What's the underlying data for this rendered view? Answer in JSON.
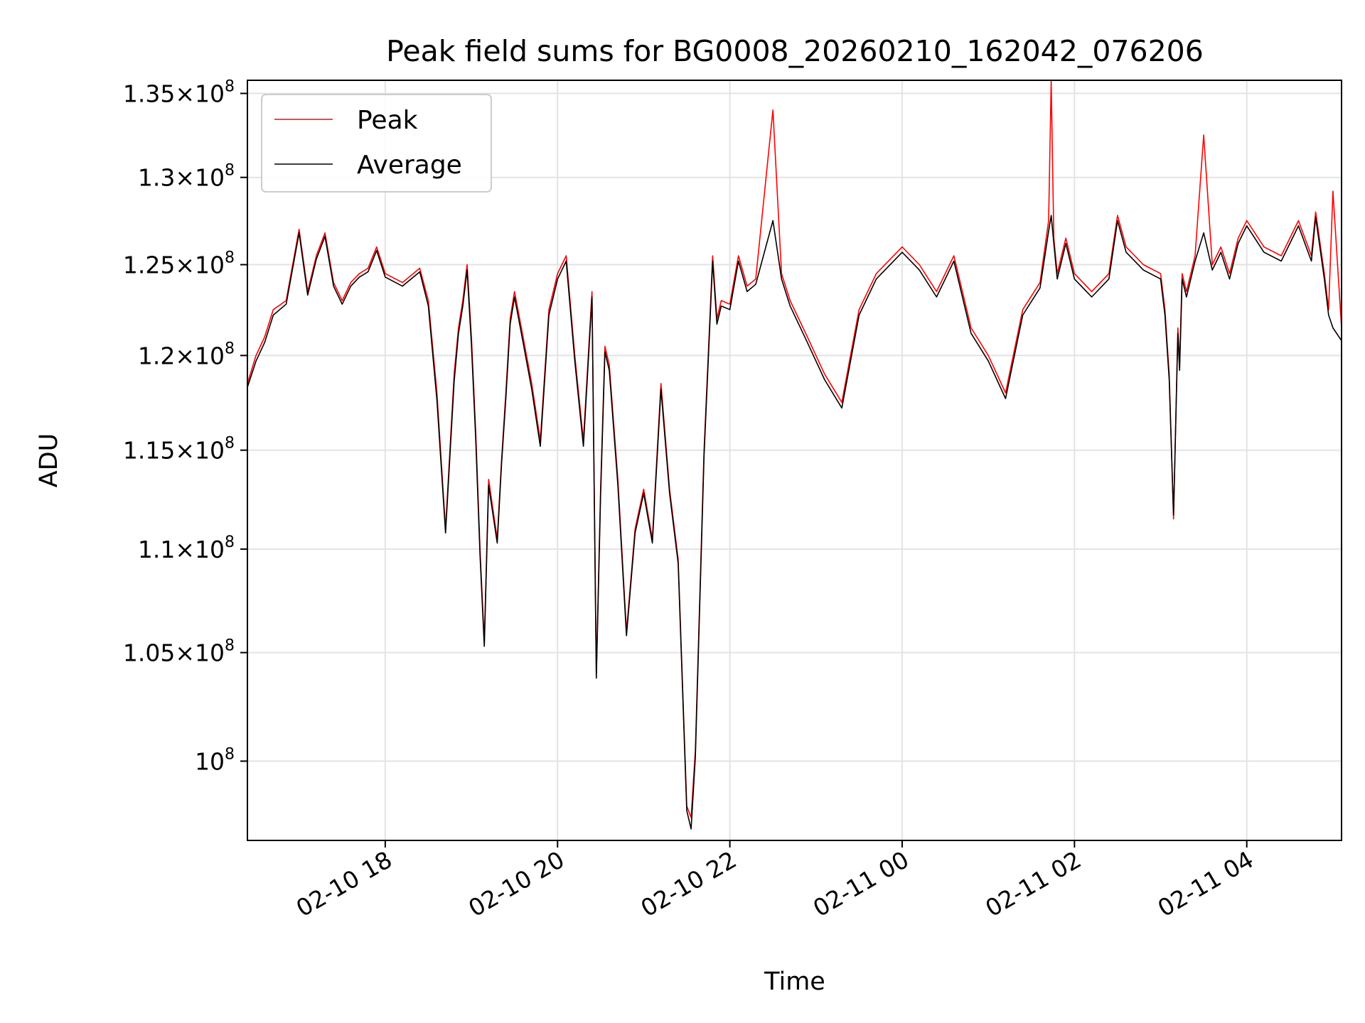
{
  "chart_data": {
    "type": "line",
    "title": "Peak field sums for BG0008_20260210_162042_076206",
    "xlabel": "Time",
    "ylabel": "ADU",
    "y_scale": "log",
    "xlim_hours": [
      16.4,
      29.1
    ],
    "ylim": [
      96500000,
      135800000
    ],
    "x_ticks": [
      {
        "hour": 18,
        "label": "02-10 18"
      },
      {
        "hour": 20,
        "label": "02-10 20"
      },
      {
        "hour": 22,
        "label": "02-10 22"
      },
      {
        "hour": 24,
        "label": "02-11 00"
      },
      {
        "hour": 26,
        "label": "02-11 02"
      },
      {
        "hour": 28,
        "label": "02-11 04"
      }
    ],
    "y_ticks": [
      {
        "value": 100000000,
        "mantissa": "",
        "exponent": "8"
      },
      {
        "value": 105000000,
        "mantissa": "1.05",
        "exponent": "8"
      },
      {
        "value": 110000000,
        "mantissa": "1.1",
        "exponent": "8"
      },
      {
        "value": 115000000,
        "mantissa": "1.15",
        "exponent": "8"
      },
      {
        "value": 120000000,
        "mantissa": "1.2",
        "exponent": "8"
      },
      {
        "value": 125000000,
        "mantissa": "1.25",
        "exponent": "8"
      },
      {
        "value": 130000000,
        "mantissa": "1.3",
        "exponent": "8"
      },
      {
        "value": 135000000,
        "mantissa": "1.35",
        "exponent": "8"
      }
    ],
    "legend_position": "top-left",
    "series": [
      {
        "name": "Peak",
        "color": "#ff0000",
        "x": [
          16.4,
          16.5,
          16.6,
          16.7,
          16.85,
          17.0,
          17.1,
          17.2,
          17.3,
          17.4,
          17.5,
          17.6,
          17.7,
          17.8,
          17.9,
          18.0,
          18.2,
          18.4,
          18.5,
          18.6,
          18.7,
          18.8,
          18.85,
          18.9,
          18.95,
          19.0,
          19.05,
          19.1,
          19.15,
          19.2,
          19.3,
          19.35,
          19.4,
          19.45,
          19.5,
          19.6,
          19.7,
          19.8,
          19.9,
          20.0,
          20.1,
          20.2,
          20.3,
          20.4,
          20.45,
          20.5,
          20.55,
          20.6,
          20.7,
          20.8,
          20.9,
          21.0,
          21.1,
          21.2,
          21.3,
          21.4,
          21.5,
          21.55,
          21.6,
          21.7,
          21.8,
          21.85,
          21.9,
          22.0,
          22.1,
          22.2,
          22.3,
          22.5,
          22.6,
          22.7,
          22.9,
          23.1,
          23.3,
          23.5,
          23.7,
          24.0,
          24.2,
          24.4,
          24.6,
          24.8,
          25.0,
          25.2,
          25.4,
          25.6,
          25.7,
          25.73,
          25.76,
          25.8,
          25.9,
          26.0,
          26.2,
          26.4,
          26.5,
          26.6,
          26.8,
          27.0,
          27.05,
          27.1,
          27.15,
          27.2,
          27.22,
          27.25,
          27.3,
          27.4,
          27.5,
          27.6,
          27.7,
          27.8,
          27.9,
          28.0,
          28.2,
          28.4,
          28.6,
          28.75,
          28.8,
          28.9,
          28.95,
          29.0,
          29.1
        ],
        "y": [
          118500000,
          120000000,
          121000000,
          122500000,
          123000000,
          127000000,
          123500000,
          125500000,
          126800000,
          124000000,
          123000000,
          124000000,
          124500000,
          124800000,
          126000000,
          124500000,
          124000000,
          124800000,
          123000000,
          118000000,
          111000000,
          119000000,
          121500000,
          123000000,
          125000000,
          121000000,
          116000000,
          110000000,
          105500000,
          113500000,
          110500000,
          114500000,
          118000000,
          122000000,
          123500000,
          121000000,
          118500000,
          115500000,
          122500000,
          124500000,
          125500000,
          120000000,
          115500000,
          123500000,
          104000000,
          113000000,
          120500000,
          119500000,
          113500000,
          106000000,
          111000000,
          113000000,
          110500000,
          118500000,
          113000000,
          109500000,
          98000000,
          97500000,
          100500000,
          115000000,
          125500000,
          122000000,
          123000000,
          122800000,
          125500000,
          123800000,
          124200000,
          134000000,
          124500000,
          123000000,
          121000000,
          119000000,
          117500000,
          122500000,
          124500000,
          126000000,
          125000000,
          123500000,
          125500000,
          121500000,
          120000000,
          118000000,
          122500000,
          124000000,
          127500000,
          135800000,
          126500000,
          124500000,
          126500000,
          124500000,
          123500000,
          124500000,
          127800000,
          126000000,
          125000000,
          124500000,
          122500000,
          119000000,
          111500000,
          121500000,
          119500000,
          124500000,
          123500000,
          125500000,
          132500000,
          125000000,
          126000000,
          124500000,
          126500000,
          127500000,
          126000000,
          125500000,
          127500000,
          125500000,
          128000000,
          124500000,
          122500000,
          129200000,
          121500000
        ]
      },
      {
        "name": "Average",
        "color": "#000000",
        "x": [
          16.4,
          16.5,
          16.6,
          16.7,
          16.85,
          17.0,
          17.1,
          17.2,
          17.3,
          17.4,
          17.5,
          17.6,
          17.7,
          17.8,
          17.9,
          18.0,
          18.2,
          18.4,
          18.5,
          18.6,
          18.7,
          18.8,
          18.85,
          18.9,
          18.95,
          19.0,
          19.05,
          19.1,
          19.15,
          19.2,
          19.3,
          19.35,
          19.4,
          19.45,
          19.5,
          19.6,
          19.7,
          19.8,
          19.9,
          20.0,
          20.1,
          20.2,
          20.3,
          20.4,
          20.45,
          20.5,
          20.55,
          20.6,
          20.7,
          20.8,
          20.9,
          21.0,
          21.1,
          21.2,
          21.3,
          21.4,
          21.5,
          21.55,
          21.6,
          21.7,
          21.8,
          21.85,
          21.9,
          22.0,
          22.1,
          22.2,
          22.3,
          22.5,
          22.6,
          22.7,
          22.9,
          23.1,
          23.3,
          23.5,
          23.7,
          24.0,
          24.2,
          24.4,
          24.6,
          24.8,
          25.0,
          25.2,
          25.4,
          25.6,
          25.7,
          25.73,
          25.76,
          25.8,
          25.9,
          26.0,
          26.2,
          26.4,
          26.5,
          26.6,
          26.8,
          27.0,
          27.05,
          27.1,
          27.15,
          27.2,
          27.22,
          27.25,
          27.3,
          27.4,
          27.5,
          27.6,
          27.7,
          27.8,
          27.9,
          28.0,
          28.2,
          28.4,
          28.6,
          28.75,
          28.8,
          28.9,
          28.95,
          29.0,
          29.1
        ],
        "y": [
          118300000,
          119700000,
          120700000,
          122200000,
          122800000,
          126800000,
          123300000,
          125300000,
          126600000,
          123800000,
          122800000,
          123800000,
          124300000,
          124600000,
          125800000,
          124300000,
          123800000,
          124600000,
          122700000,
          117600000,
          110800000,
          118600000,
          121200000,
          122700000,
          124700000,
          120600000,
          115600000,
          109700000,
          105300000,
          113200000,
          110300000,
          114300000,
          117700000,
          121700000,
          123200000,
          120700000,
          118200000,
          115200000,
          122200000,
          124200000,
          125200000,
          119700000,
          115200000,
          123200000,
          103800000,
          112700000,
          120200000,
          119200000,
          113200000,
          105800000,
          110800000,
          112800000,
          110300000,
          118200000,
          112800000,
          109300000,
          97800000,
          97000000,
          100200000,
          114700000,
          125200000,
          121700000,
          122700000,
          122500000,
          125200000,
          123500000,
          123900000,
          127500000,
          124200000,
          122700000,
          120700000,
          118700000,
          117200000,
          122200000,
          124200000,
          125700000,
          124700000,
          123200000,
          125200000,
          121200000,
          119700000,
          117700000,
          122200000,
          123700000,
          126900000,
          127800000,
          126200000,
          124200000,
          126200000,
          124200000,
          123200000,
          124200000,
          127500000,
          125700000,
          124700000,
          124200000,
          122200000,
          118700000,
          111700000,
          121200000,
          119200000,
          124200000,
          123200000,
          125200000,
          126800000,
          124700000,
          125700000,
          124200000,
          126200000,
          127200000,
          125700000,
          125200000,
          127200000,
          125200000,
          127700000,
          124200000,
          122200000,
          121500000,
          120800000
        ]
      }
    ]
  }
}
